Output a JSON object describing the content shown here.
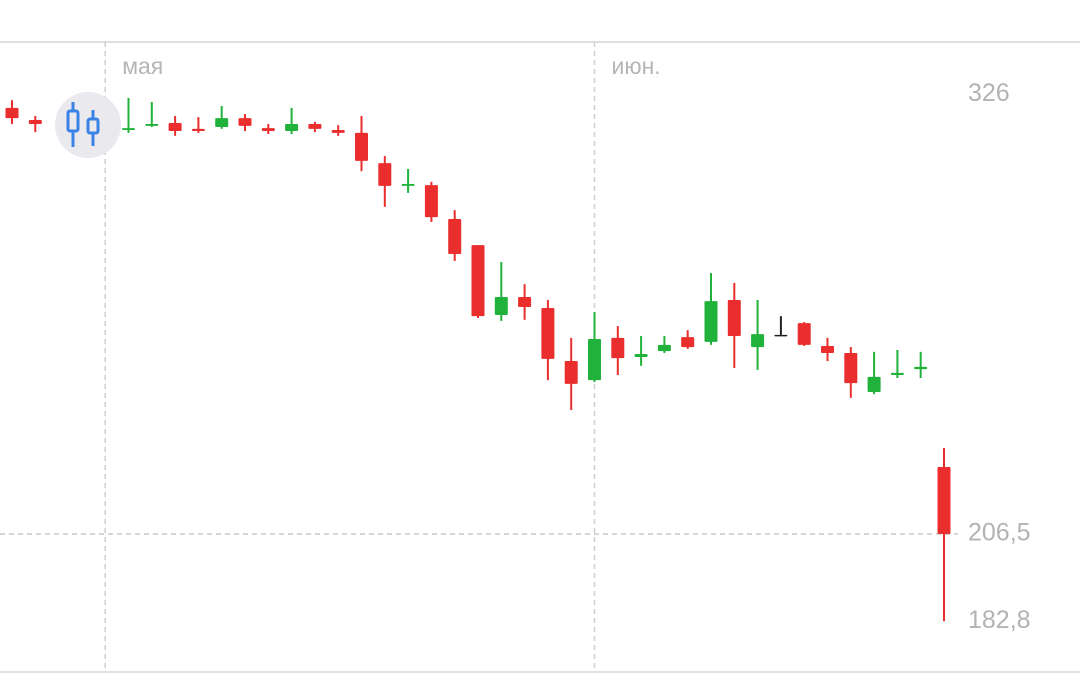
{
  "chart_data": {
    "type": "candlestick",
    "categories": [
      null,
      null,
      null,
      null,
      "мая",
      null,
      null,
      null,
      null,
      null,
      null,
      null,
      null,
      null,
      null,
      null,
      null,
      null,
      null,
      null,
      null,
      null,
      null,
      null,
      null,
      "июн.",
      null,
      null,
      null,
      null,
      null,
      null,
      null,
      null,
      null,
      null,
      null,
      null,
      null,
      null,
      null
    ],
    "open": [
      322.3,
      319.0,
      null,
      null,
      null,
      316.3,
      317.4,
      318.2,
      316.6,
      317.1,
      319.5,
      316.8,
      316.0,
      317.9,
      316.3,
      315.5,
      307.3,
      301.1,
      301.3,
      292.1,
      285.0,
      266.0,
      270.9,
      267.9,
      253.5,
      248.3,
      259.8,
      254.6,
      256.2,
      260.0,
      258.7,
      270.1,
      257.3,
      260.6,
      263.8,
      257.6,
      255.7,
      245.1,
      249.7,
      251.3,
      224.7
    ],
    "high": [
      324.4,
      320.1,
      null,
      null,
      null,
      325.0,
      323.9,
      320.1,
      319.8,
      322.8,
      320.6,
      317.9,
      322.3,
      318.5,
      317.6,
      320.1,
      309.2,
      305.7,
      302.2,
      294.5,
      285.0,
      280.4,
      274.4,
      270.1,
      259.8,
      266.8,
      263.0,
      260.3,
      260.3,
      261.9,
      277.4,
      274.7,
      270.1,
      265.7,
      264.1,
      259.8,
      257.3,
      256.0,
      256.5,
      256.0,
      229.9
    ],
    "low": [
      317.9,
      315.7,
      null,
      null,
      null,
      315.5,
      317.1,
      314.7,
      315.5,
      316.6,
      316.0,
      315.2,
      315.2,
      315.7,
      314.7,
      305.1,
      295.4,
      299.2,
      291.3,
      280.7,
      265.2,
      264.4,
      264.7,
      248.3,
      240.2,
      247.8,
      249.7,
      252.2,
      255.7,
      256.8,
      257.9,
      251.6,
      251.1,
      260.6,
      257.6,
      253.5,
      243.5,
      244.5,
      248.9,
      248.9,
      182.8
    ],
    "close": [
      319.5,
      317.9,
      null,
      null,
      null,
      316.8,
      317.9,
      316.0,
      316.0,
      319.5,
      317.4,
      316.0,
      317.9,
      316.6,
      315.5,
      307.9,
      301.1,
      301.6,
      292.6,
      282.6,
      265.7,
      270.9,
      268.2,
      254.1,
      247.3,
      259.5,
      254.3,
      255.4,
      257.9,
      257.3,
      269.8,
      260.3,
      260.8,
      260.6,
      257.9,
      255.7,
      247.5,
      249.2,
      250.3,
      251.9,
      206.5
    ],
    "up_color": "#20b23a",
    "down_color": "#ea2d2d",
    "flat_color": "#222222",
    "ylim": [
      169.0,
      340.2
    ],
    "yticks": [
      326,
      {
        "value": 206.5,
        "label": "206,5"
      },
      {
        "value": 182.8,
        "label": "182,8"
      }
    ],
    "last_price_line": true
  }
}
